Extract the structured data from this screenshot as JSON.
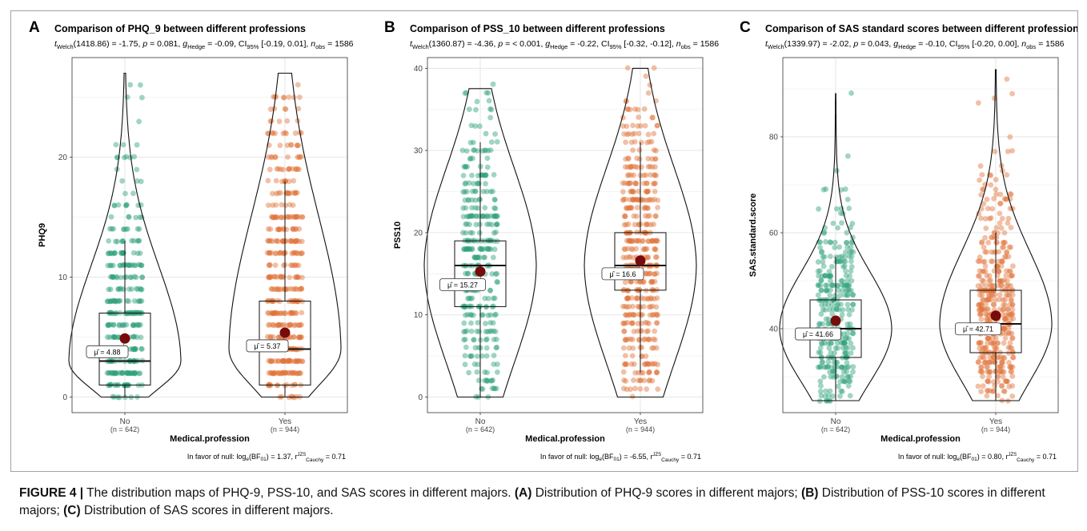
{
  "figure": {
    "caption_label": "FIGURE 4 |",
    "caption_text": " The distribution maps of PHQ-9, PSS-10, and SAS scores in different majors. ",
    "caption_a_label": "(A)",
    "caption_a_text": " Distribution of PHQ-9 scores in different majors; ",
    "caption_b_label": "(B)",
    "caption_b_text": " Distribution of PSS-10 scores in different majors; ",
    "caption_c_label": "(C)",
    "caption_c_text": " Distribution of SAS scores in different majors."
  },
  "colors": {
    "no": "#2ca07a",
    "yes": "#e0743a",
    "mean": "#7a0a0a",
    "grid": "#e6e6e6"
  },
  "chart_data": [
    {
      "type": "violin-box-scatter",
      "letter": "A",
      "title": "Comparison of PHQ_9 between different professions",
      "subtitle": {
        "pre": "t",
        "sub1": "Welch",
        "mid1": "(1418.86) = -1.75, ",
        "p": "p",
        "mid2": " = 0.081, ",
        "g": "g",
        "sub2": "Hedge",
        "mid3": " = -0.09, CI",
        "sub3": "95%",
        "mid4": " [-0.19, 0.01], ",
        "n": "n",
        "sub4": "obs",
        "end": " = 1586"
      },
      "ylabel": "PHQ9",
      "xlabel": "Medical.profession",
      "ylim": [
        -1.3,
        28.3
      ],
      "yticks": [
        0,
        10,
        20
      ],
      "yminor": [
        5,
        15,
        25
      ],
      "groups": [
        {
          "name": "No",
          "n_label": "(n = 642)",
          "mean": 4.88,
          "mean_label": "μ̂ = 4.88",
          "q1": 1,
          "median": 3,
          "q3": 7,
          "whisk_lo": 0,
          "whisk_hi": 13,
          "min": 0,
          "max": 27
        },
        {
          "name": "Yes",
          "n_label": "(n = 944)",
          "mean": 5.37,
          "mean_label": "μ̂ = 5.37",
          "q1": 1,
          "median": 4,
          "q3": 8,
          "whisk_lo": 0,
          "whisk_hi": 18,
          "min": 0,
          "max": 27
        }
      ],
      "footer": {
        "pre": "In favor of null: log",
        "sub1": "e",
        "mid": "(BF",
        "sub2": "01",
        "mid2": ") = 1.37, r",
        "sup": "JZS",
        "sub3": "Cauchy",
        "end": " = 0.71"
      }
    },
    {
      "type": "violin-box-scatter",
      "letter": "B",
      "title": "Comparison of PSS_10 between different professions",
      "subtitle": {
        "pre": "t",
        "sub1": "Welch",
        "mid1": "(1360.87) = -4.36, ",
        "p": "p",
        "mid2": " = < 0.001, ",
        "g": "g",
        "sub2": "Hedge",
        "mid3": " = -0.22, CI",
        "sub3": "95%",
        "mid4": " [-0.32, -0.12], ",
        "n": "n",
        "sub4": "obs",
        "end": " = 1586"
      },
      "ylabel": "PSS10",
      "xlabel": "Medical.profession",
      "ylim": [
        -1.9,
        41.3
      ],
      "yticks": [
        0,
        10,
        20,
        30,
        40
      ],
      "yminor": [
        5,
        15,
        25,
        35
      ],
      "groups": [
        {
          "name": "No",
          "n_label": "(n = 642)",
          "mean": 15.27,
          "mean_label": "μ̂ = 15.27",
          "q1": 11,
          "median": 16,
          "q3": 19,
          "whisk_lo": 0,
          "whisk_hi": 31,
          "min": 0,
          "max": 38
        },
        {
          "name": "Yes",
          "n_label": "(n = 944)",
          "mean": 16.6,
          "mean_label": "μ̂ = 16.6",
          "q1": 13,
          "median": 16,
          "q3": 20,
          "whisk_lo": 3,
          "whisk_hi": 31,
          "min": 0,
          "max": 40
        }
      ],
      "footer": {
        "pre": "In favor of null: log",
        "sub1": "e",
        "mid": "(BF",
        "sub2": "01",
        "mid2": ") = -6.55, r",
        "sup": "JZS",
        "sub3": "Cauchy",
        "end": " = 0.71"
      }
    },
    {
      "type": "violin-box-scatter",
      "letter": "C",
      "title": "Comparison of SAS standard scores between different professions",
      "subtitle": {
        "pre": "t",
        "sub1": "Welch",
        "mid1": "(1339.97) = -2.02, ",
        "p": "p",
        "mid2": " = 0.043, ",
        "g": "g",
        "sub2": "Hedge",
        "mid3": " = -0.10, CI",
        "sub3": "95%",
        "mid4": " [-0.20, 0.00], ",
        "n": "n",
        "sub4": "obs",
        "end": " = 1586"
      },
      "ylabel": "SAS.standard.score",
      "xlabel": "Medical.profession",
      "ylim": [
        22.5,
        96.5
      ],
      "yticks": [
        40,
        60,
        80
      ],
      "yminor": [
        30,
        50,
        70,
        90
      ],
      "groups": [
        {
          "name": "No",
          "n_label": "(n = 642)",
          "mean": 41.66,
          "mean_label": "μ̂ = 41.66",
          "q1": 34,
          "median": 40,
          "q3": 46,
          "whisk_lo": 25,
          "whisk_hi": 55,
          "min": 25,
          "max": 89
        },
        {
          "name": "Yes",
          "n_label": "(n = 944)",
          "mean": 42.71,
          "mean_label": "μ̂ = 42.71",
          "q1": 35,
          "median": 41,
          "q3": 48,
          "whisk_lo": 25,
          "whisk_hi": 60,
          "min": 25,
          "max": 94
        }
      ],
      "footer": {
        "pre": "In favor of null: log",
        "sub1": "e",
        "mid": "(BF",
        "sub2": "01",
        "mid2": ") = 0.80, r",
        "sup": "JZS",
        "sub3": "Cauchy",
        "end": " = 0.71"
      }
    }
  ]
}
